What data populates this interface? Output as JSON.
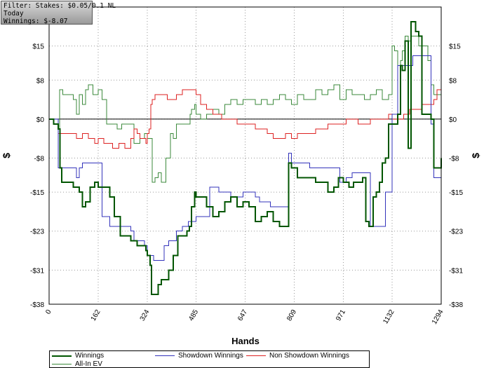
{
  "info_box": {
    "filter": "Filter: Stakes: $0.05/0.1 NL",
    "period": "Today",
    "winnings": "Winnings: $-8.07"
  },
  "chart_data": {
    "type": "line",
    "title": "",
    "xlabel": "Hands",
    "ylabel": "$",
    "xlim": [
      0,
      1294
    ],
    "ylim": [
      -38,
      23
    ],
    "x_ticks": [
      "0",
      "162",
      "324",
      "485",
      "647",
      "809",
      "971",
      "1132",
      "1294"
    ],
    "y_ticks": [
      {
        "value": 15,
        "label": "$15"
      },
      {
        "value": 8,
        "label": "$8"
      },
      {
        "value": 0,
        "label": "$0"
      },
      {
        "value": -8,
        "label": "-$8"
      },
      {
        "value": -15,
        "label": "-$15"
      },
      {
        "value": -23,
        "label": "-$23"
      },
      {
        "value": -31,
        "label": "-$31"
      },
      {
        "value": -38,
        "label": "-$38"
      }
    ],
    "grid": true,
    "legend_position": "bottom",
    "colors": {
      "winnings": "#005500",
      "showdown": "#3333bb",
      "non_showdown": "#dd2222",
      "allin_ev": "#3b8a3b",
      "zero_line": "#000000",
      "grid": "#999999"
    },
    "series": [
      {
        "name": "Winnings",
        "color": "#005500",
        "x": [
          0,
          15,
          30,
          36,
          42,
          60,
          80,
          100,
          110,
          120,
          135,
          150,
          162,
          180,
          200,
          215,
          235,
          255,
          270,
          280,
          290,
          300,
          310,
          320,
          324,
          333,
          338,
          345,
          360,
          370,
          380,
          395,
          410,
          425,
          440,
          455,
          463,
          470,
          480,
          485,
          500,
          520,
          540,
          560,
          580,
          600,
          620,
          640,
          660,
          680,
          700,
          720,
          740,
          760,
          780,
          790,
          800,
          810,
          820,
          840,
          860,
          880,
          900,
          920,
          940,
          955,
          971,
          990,
          1005,
          1020,
          1035,
          1045,
          1055,
          1070,
          1080,
          1090,
          1100,
          1110,
          1120,
          1132,
          1140,
          1150,
          1155,
          1160,
          1165,
          1175,
          1185,
          1195,
          1200,
          1210,
          1220,
          1230,
          1240,
          1250,
          1260,
          1270,
          1280,
          1294
        ],
        "y": [
          0,
          -1,
          -2,
          -10,
          -13,
          -13,
          -14,
          -15,
          -18,
          -17,
          -14,
          -13,
          -14,
          -14,
          -16,
          -20,
          -24,
          -24,
          -25,
          -25,
          -26,
          -26,
          -26,
          -27,
          -28,
          -30,
          -36,
          -36,
          -34,
          -33,
          -33,
          -31,
          -28,
          -24,
          -24,
          -23,
          -22,
          -18,
          -15,
          -16,
          -16,
          -18,
          -20,
          -19,
          -17,
          -16,
          -18,
          -17,
          -18,
          -21,
          -20,
          -19,
          -21,
          -22,
          -22,
          -9,
          -10,
          -10,
          -12,
          -12,
          -12,
          -13,
          -13,
          -15,
          -14,
          -12,
          -13,
          -14,
          -13,
          -13,
          -12,
          -21,
          -22,
          -16,
          -15,
          -13,
          -9,
          -8,
          -1,
          -1,
          -1,
          1,
          1,
          11,
          10,
          16,
          -6,
          20,
          20,
          18,
          17,
          1,
          1,
          1,
          0,
          -10,
          -10,
          -8
        ]
      },
      {
        "name": "Showdown Winnings",
        "color": "#3333bb",
        "x": [
          0,
          25,
          30,
          45,
          80,
          90,
          100,
          110,
          130,
          162,
          175,
          200,
          230,
          265,
          270,
          280,
          300,
          315,
          324,
          325,
          345,
          355,
          380,
          395,
          420,
          440,
          460,
          485,
          530,
          560,
          600,
          640,
          680,
          695,
          720,
          730,
          740,
          760,
          780,
          790,
          800,
          820,
          860,
          900,
          940,
          960,
          980,
          1000,
          1020,
          1040,
          1060,
          1080,
          1100,
          1110,
          1120,
          1132,
          1140,
          1150,
          1200,
          1260,
          1270,
          1294
        ],
        "y": [
          0,
          0,
          -10,
          -10,
          -10,
          -12,
          -10,
          -9,
          -9,
          -9,
          -20,
          -22,
          -22,
          -22,
          -23,
          -25,
          -25,
          -26,
          -28,
          -28,
          -29,
          -29,
          -26,
          -25,
          -23,
          -22,
          -21,
          -20,
          -14,
          -15,
          -16,
          -15,
          -16,
          -17,
          -17,
          -18,
          -18,
          -18,
          -18,
          -7,
          -9,
          -9,
          -10,
          -10,
          -10,
          -13,
          -12,
          -11,
          -11,
          -11,
          -22,
          -22,
          -22,
          -15,
          -15,
          1,
          1,
          11,
          13,
          -1,
          -12,
          -12
        ]
      },
      {
        "name": "Non Showdown Winnings",
        "color": "#dd2222",
        "x": [
          0,
          15,
          30,
          50,
          70,
          90,
          110,
          130,
          150,
          162,
          180,
          200,
          210,
          230,
          250,
          270,
          280,
          290,
          300,
          320,
          324,
          330,
          336,
          340,
          350,
          370,
          390,
          420,
          440,
          460,
          485,
          500,
          520,
          540,
          570,
          600,
          620,
          640,
          660,
          680,
          700,
          720,
          740,
          760,
          780,
          800,
          820,
          840,
          860,
          880,
          900,
          920,
          940,
          960,
          980,
          1000,
          1020,
          1040,
          1060,
          1080,
          1100,
          1120,
          1132,
          1150,
          1170,
          1190,
          1210,
          1230,
          1250,
          1270,
          1280,
          1294
        ],
        "y": [
          0,
          -1,
          -3,
          -3,
          -3,
          -4,
          -3,
          -4,
          -5,
          -4,
          -5,
          -5,
          -6,
          -5,
          -6,
          -4,
          -2,
          -3,
          -4,
          -5,
          -3,
          -2,
          3,
          4,
          5,
          5,
          4,
          5,
          6,
          6,
          5,
          3,
          2,
          1,
          0,
          0,
          -1,
          -1,
          -1,
          -2,
          -2,
          -3,
          -4,
          -4,
          -3,
          -4,
          -3,
          -3,
          -3,
          -2,
          -2,
          -1,
          -1,
          -1,
          0,
          0,
          -1,
          -1,
          0,
          0,
          0,
          1,
          0,
          0,
          1,
          2,
          2,
          3,
          3,
          4,
          6,
          4
        ]
      },
      {
        "name": "All-In EV",
        "color": "#3b8a3b",
        "x": [
          0,
          15,
          30,
          35,
          45,
          60,
          80,
          90,
          100,
          110,
          120,
          130,
          145,
          162,
          175,
          190,
          210,
          225,
          240,
          260,
          280,
          300,
          315,
          324,
          340,
          350,
          360,
          370,
          385,
          400,
          410,
          420,
          440,
          455,
          465,
          470,
          480,
          485,
          500,
          520,
          540,
          560,
          580,
          600,
          620,
          640,
          660,
          680,
          700,
          720,
          740,
          760,
          780,
          800,
          820,
          840,
          860,
          880,
          900,
          920,
          940,
          960,
          980,
          1000,
          1020,
          1040,
          1060,
          1080,
          1100,
          1120,
          1132,
          1140,
          1150,
          1160,
          1165,
          1175,
          1185,
          1195,
          1210,
          1220,
          1230,
          1240,
          1250,
          1260,
          1270,
          1280,
          1294
        ],
        "y": [
          0,
          -1,
          -2,
          6,
          5,
          5,
          4,
          1,
          5,
          3,
          6,
          7,
          5,
          6,
          4,
          -1,
          -1,
          -2,
          -1,
          -1,
          -5,
          -4,
          -3,
          -4,
          -13,
          -12,
          -11,
          -13,
          -8,
          -3,
          -4,
          -1,
          -1,
          -1,
          1,
          2,
          3,
          1,
          0,
          1,
          2,
          1,
          3,
          4,
          3,
          4,
          4,
          3,
          4,
          3,
          4,
          5,
          4,
          3,
          5,
          4,
          4,
          6,
          5,
          6,
          7,
          4,
          6,
          5,
          5,
          4,
          5,
          6,
          4,
          5,
          15,
          14,
          11,
          12,
          14,
          17,
          16,
          17,
          17,
          15,
          15,
          15,
          12,
          7,
          5,
          5,
          8
        ]
      }
    ]
  },
  "legend": [
    {
      "label": "Winnings",
      "color": "#005500",
      "width": 2
    },
    {
      "label": "Showdown Winnings",
      "color": "#3333bb",
      "width": 1
    },
    {
      "label": "Non Showdown Winnings",
      "color": "#dd2222",
      "width": 1
    },
    {
      "label": "All-In EV",
      "color": "#3b8a3b",
      "width": 1
    }
  ]
}
